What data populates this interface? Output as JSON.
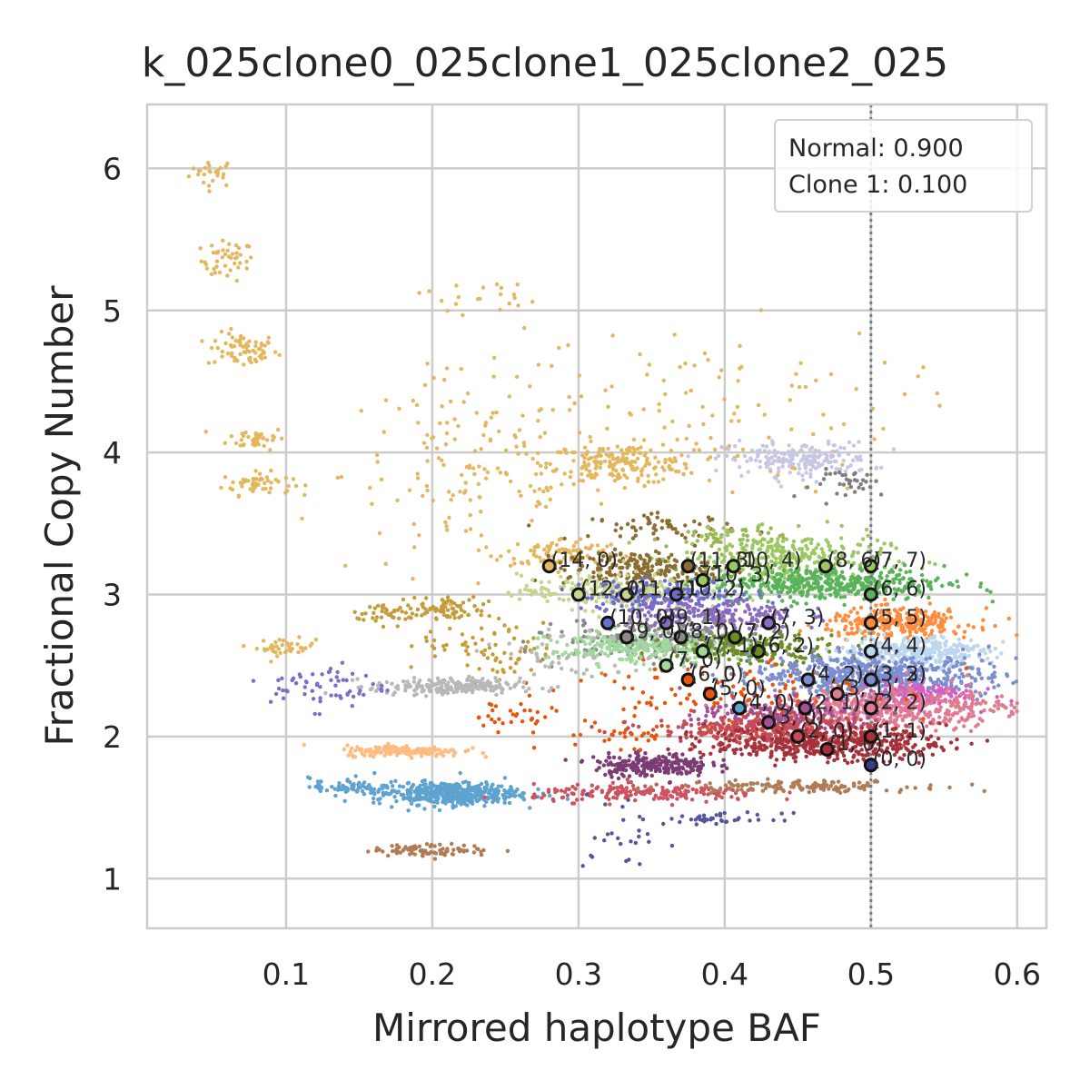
{
  "chart_data": {
    "type": "scatter",
    "title": "k_025clone0_025clone1_025clone2_025",
    "xlabel": "Mirrored haplotype BAF",
    "ylabel": "Fractional Copy Number",
    "xlim": [
      0.005,
      0.62
    ],
    "ylim": [
      0.65,
      6.45
    ],
    "xticks": [
      "0.1",
      "0.2",
      "0.3",
      "0.4",
      "0.5",
      "0.6"
    ],
    "yticks": [
      "1",
      "2",
      "3",
      "4",
      "5",
      "6"
    ],
    "grid": true,
    "reference_line": {
      "x": 0.5,
      "style": "dotted"
    },
    "legend": {
      "placement": "top-right",
      "lines": [
        "Normal: 0.900",
        "Clone 1: 0.100"
      ]
    },
    "clusters": [
      {
        "x": 0.05,
        "y": 5.97,
        "sx": 0.008,
        "sy": 0.05,
        "n": 25,
        "color": "#e3b75e"
      },
      {
        "x": 0.06,
        "y": 5.35,
        "sx": 0.009,
        "sy": 0.07,
        "n": 45,
        "color": "#e3b75e"
      },
      {
        "x": 0.07,
        "y": 4.72,
        "sx": 0.012,
        "sy": 0.06,
        "n": 70,
        "color": "#e3b75e"
      },
      {
        "x": 0.08,
        "y": 4.1,
        "sx": 0.01,
        "sy": 0.04,
        "n": 40,
        "color": "#e3b75e"
      },
      {
        "x": 0.08,
        "y": 3.78,
        "sx": 0.012,
        "sy": 0.04,
        "n": 55,
        "color": "#e3b75e"
      },
      {
        "x": 0.1,
        "y": 2.63,
        "sx": 0.01,
        "sy": 0.03,
        "n": 40,
        "color": "#e3b75e"
      },
      {
        "x": 0.23,
        "y": 3.85,
        "sx": 0.045,
        "sy": 0.35,
        "n": 160,
        "color": "#e3b75e"
      },
      {
        "x": 0.33,
        "y": 3.92,
        "sx": 0.025,
        "sy": 0.07,
        "n": 190,
        "color": "#e3b75e"
      },
      {
        "x": 0.29,
        "y": 3.3,
        "sx": 0.02,
        "sy": 0.05,
        "n": 80,
        "color": "#e3b75e"
      },
      {
        "x": 0.38,
        "y": 4.3,
        "sx": 0.07,
        "sy": 0.3,
        "n": 110,
        "color": "#e3b75e"
      },
      {
        "x": 0.23,
        "y": 5.1,
        "sx": 0.02,
        "sy": 0.06,
        "n": 20,
        "color": "#e3b75e"
      },
      {
        "x": 0.45,
        "y": 3.95,
        "sx": 0.025,
        "sy": 0.06,
        "n": 200,
        "color": "#c7c7e4"
      },
      {
        "x": 0.49,
        "y": 3.78,
        "sx": 0.015,
        "sy": 0.05,
        "n": 35,
        "color": "#7f7f7f"
      },
      {
        "x": 0.36,
        "y": 3.48,
        "sx": 0.025,
        "sy": 0.04,
        "n": 60,
        "color": "#8c6d31"
      },
      {
        "x": 0.4,
        "y": 3.4,
        "sx": 0.02,
        "sy": 0.05,
        "n": 60,
        "color": "#9bb854"
      },
      {
        "x": 0.44,
        "y": 3.25,
        "sx": 0.035,
        "sy": 0.09,
        "n": 320,
        "color": "#9bc860"
      },
      {
        "x": 0.47,
        "y": 3.08,
        "sx": 0.04,
        "sy": 0.06,
        "n": 450,
        "color": "#5ab35a"
      },
      {
        "x": 0.34,
        "y": 3.18,
        "sx": 0.025,
        "sy": 0.06,
        "n": 200,
        "color": "#8c6d31"
      },
      {
        "x": 0.32,
        "y": 3.02,
        "sx": 0.03,
        "sy": 0.06,
        "n": 250,
        "color": "#c5d48f"
      },
      {
        "x": 0.36,
        "y": 3.0,
        "sx": 0.03,
        "sy": 0.05,
        "n": 160,
        "color": "#6b6ecf"
      },
      {
        "x": 0.39,
        "y": 2.85,
        "sx": 0.03,
        "sy": 0.06,
        "n": 220,
        "color": "#8b6bc0"
      },
      {
        "x": 0.52,
        "y": 2.8,
        "sx": 0.025,
        "sy": 0.05,
        "n": 280,
        "color": "#fd8d3c"
      },
      {
        "x": 0.36,
        "y": 2.68,
        "sx": 0.035,
        "sy": 0.07,
        "n": 280,
        "color": "#8a8a8a"
      },
      {
        "x": 0.34,
        "y": 2.62,
        "sx": 0.03,
        "sy": 0.06,
        "n": 250,
        "color": "#a1d99b"
      },
      {
        "x": 0.42,
        "y": 2.62,
        "sx": 0.03,
        "sy": 0.05,
        "n": 180,
        "color": "#6b8e23"
      },
      {
        "x": 0.53,
        "y": 2.6,
        "sx": 0.025,
        "sy": 0.05,
        "n": 350,
        "color": "#bdd7ee"
      },
      {
        "x": 0.5,
        "y": 2.43,
        "sx": 0.04,
        "sy": 0.07,
        "n": 600,
        "color": "#7b8fd0"
      },
      {
        "x": 0.53,
        "y": 2.3,
        "sx": 0.02,
        "sy": 0.05,
        "n": 150,
        "color": "#d45fc1"
      },
      {
        "x": 0.51,
        "y": 2.2,
        "sx": 0.04,
        "sy": 0.07,
        "n": 500,
        "color": "#e07b91"
      },
      {
        "x": 0.4,
        "y": 2.3,
        "sx": 0.05,
        "sy": 0.15,
        "n": 130,
        "color": "#e6550d"
      },
      {
        "x": 0.44,
        "y": 2.15,
        "sx": 0.03,
        "sy": 0.06,
        "n": 200,
        "color": "#a05195"
      },
      {
        "x": 0.43,
        "y": 2.05,
        "sx": 0.04,
        "sy": 0.05,
        "n": 300,
        "color": "#c94a55"
      },
      {
        "x": 0.47,
        "y": 1.95,
        "sx": 0.04,
        "sy": 0.06,
        "n": 450,
        "color": "#a5313a"
      },
      {
        "x": 0.21,
        "y": 2.9,
        "sx": 0.015,
        "sy": 0.04,
        "n": 80,
        "color": "#c49c3b"
      },
      {
        "x": 0.17,
        "y": 2.87,
        "sx": 0.012,
        "sy": 0.04,
        "n": 40,
        "color": "#c49c3b"
      },
      {
        "x": 0.24,
        "y": 2.58,
        "sx": 0.025,
        "sy": 0.1,
        "n": 70,
        "color": "#c49c3b"
      },
      {
        "x": 0.21,
        "y": 2.35,
        "sx": 0.025,
        "sy": 0.03,
        "n": 220,
        "color": "#b8b8b8"
      },
      {
        "x": 0.13,
        "y": 2.35,
        "sx": 0.02,
        "sy": 0.08,
        "n": 60,
        "color": "#7570c8"
      },
      {
        "x": 0.18,
        "y": 1.9,
        "sx": 0.02,
        "sy": 0.02,
        "n": 180,
        "color": "#ffbb80"
      },
      {
        "x": 0.21,
        "y": 1.6,
        "sx": 0.025,
        "sy": 0.04,
        "n": 450,
        "color": "#5ea2cf"
      },
      {
        "x": 0.14,
        "y": 1.65,
        "sx": 0.012,
        "sy": 0.03,
        "n": 60,
        "color": "#5ea2cf"
      },
      {
        "x": 0.2,
        "y": 1.2,
        "sx": 0.02,
        "sy": 0.02,
        "n": 90,
        "color": "#b07c55"
      },
      {
        "x": 0.35,
        "y": 1.8,
        "sx": 0.02,
        "sy": 0.04,
        "n": 230,
        "color": "#7b3c73"
      },
      {
        "x": 0.35,
        "y": 1.6,
        "sx": 0.04,
        "sy": 0.03,
        "n": 200,
        "color": "#cd5360"
      },
      {
        "x": 0.45,
        "y": 1.65,
        "sx": 0.04,
        "sy": 0.02,
        "n": 150,
        "color": "#b07c55"
      },
      {
        "x": 0.4,
        "y": 1.42,
        "sx": 0.02,
        "sy": 0.02,
        "n": 40,
        "color": "#55559c"
      },
      {
        "x": 0.33,
        "y": 1.3,
        "sx": 0.015,
        "sy": 0.15,
        "n": 25,
        "color": "#55559c"
      },
      {
        "x": 0.33,
        "y": 2.0,
        "sx": 0.025,
        "sy": 0.04,
        "n": 30,
        "color": "#e6550d"
      },
      {
        "x": 0.25,
        "y": 2.15,
        "sx": 0.02,
        "sy": 0.05,
        "n": 30,
        "color": "#e6550d"
      },
      {
        "x": 0.3,
        "y": 2.55,
        "sx": 0.03,
        "sy": 0.12,
        "n": 50,
        "color": "#b8b8b8"
      }
    ],
    "states": [
      {
        "label": "(0, 0)",
        "x": 0.5,
        "y": 1.8,
        "fill": "#3b3b8f"
      },
      {
        "label": "(1, 0)",
        "x": 0.47,
        "y": 1.91,
        "fill": "#a5313a"
      },
      {
        "label": "(1, 1)",
        "x": 0.5,
        "y": 2.0,
        "fill": "#a5313a"
      },
      {
        "label": "(2, 0)",
        "x": 0.45,
        "y": 2.0,
        "fill": "#c94a55"
      },
      {
        "label": "(3, 0)",
        "x": 0.43,
        "y": 2.1,
        "fill": "#a05195"
      },
      {
        "label": "(2, 1)",
        "x": 0.455,
        "y": 2.2,
        "fill": "#a05195"
      },
      {
        "label": "(2, 2)",
        "x": 0.5,
        "y": 2.2,
        "fill": "#e07b91"
      },
      {
        "label": "(4, 0)",
        "x": 0.41,
        "y": 2.2,
        "fill": "#5ea2cf"
      },
      {
        "label": "(3, 1)",
        "x": 0.477,
        "y": 2.3,
        "fill": "#e07b91"
      },
      {
        "label": "(5, 0)",
        "x": 0.39,
        "y": 2.3,
        "fill": "#e6550d"
      },
      {
        "label": "(3, 2)",
        "x": 0.5,
        "y": 2.4,
        "fill": "#7b8fd0"
      },
      {
        "label": "(4, 2)",
        "x": 0.457,
        "y": 2.4,
        "fill": "#7b8fd0"
      },
      {
        "label": "(6, 0)",
        "x": 0.375,
        "y": 2.4,
        "fill": "#e6550d"
      },
      {
        "label": "(7, 0)",
        "x": 0.36,
        "y": 2.5,
        "fill": "#a1d99b"
      },
      {
        "label": "(3, 3)",
        "x": 0.5,
        "y": 2.4,
        "fill": "#7b8fd0"
      },
      {
        "label": "(6, 2)",
        "x": 0.423,
        "y": 2.6,
        "fill": "#6b8e23"
      },
      {
        "label": "(7, 1)",
        "x": 0.385,
        "y": 2.6,
        "fill": "#a1d99b"
      },
      {
        "label": "(4, 4)",
        "x": 0.5,
        "y": 2.6,
        "fill": "#bdd7ee"
      },
      {
        "label": "(8, 0)",
        "x": 0.37,
        "y": 2.7,
        "fill": "#8a8a8a"
      },
      {
        "label": "(9, 0)",
        "x": 0.333,
        "y": 2.7,
        "fill": "#8a8a8a"
      },
      {
        "label": "(7, 2)",
        "x": 0.407,
        "y": 2.7,
        "fill": "#6b8e23"
      },
      {
        "label": "(5, 5)",
        "x": 0.5,
        "y": 2.8,
        "fill": "#fd8d3c"
      },
      {
        "label": "(7, 3)",
        "x": 0.43,
        "y": 2.8,
        "fill": "#8b6bc0"
      },
      {
        "label": "(9, 1)",
        "x": 0.36,
        "y": 2.8,
        "fill": "#8b6bc0"
      },
      {
        "label": "(10, 0)",
        "x": 0.32,
        "y": 2.8,
        "fill": "#6b6ecf"
      },
      {
        "label": "(6, 6)",
        "x": 0.5,
        "y": 3.0,
        "fill": "#5ab35a"
      },
      {
        "label": "(10, 2)",
        "x": 0.367,
        "y": 3.0,
        "fill": "#6b6ecf"
      },
      {
        "label": "(11, 1)",
        "x": 0.333,
        "y": 3.0,
        "fill": "#c5d48f"
      },
      {
        "label": "(12, 0)",
        "x": 0.3,
        "y": 3.0,
        "fill": "#c5d48f"
      },
      {
        "label": "(10, 3)",
        "x": 0.385,
        "y": 3.1,
        "fill": "#9bc860"
      },
      {
        "label": "(7, 7)",
        "x": 0.5,
        "y": 3.2,
        "fill": "#9bc860"
      },
      {
        "label": "(8, 6)",
        "x": 0.469,
        "y": 3.2,
        "fill": "#9bc860"
      },
      {
        "label": "(10, 4)",
        "x": 0.406,
        "y": 3.2,
        "fill": "#9bc860"
      },
      {
        "label": "(11, 3)",
        "x": 0.375,
        "y": 3.2,
        "fill": "#8c6d31"
      },
      {
        "label": "(14, 0)",
        "x": 0.28,
        "y": 3.2,
        "fill": "#e3b75e"
      }
    ]
  }
}
